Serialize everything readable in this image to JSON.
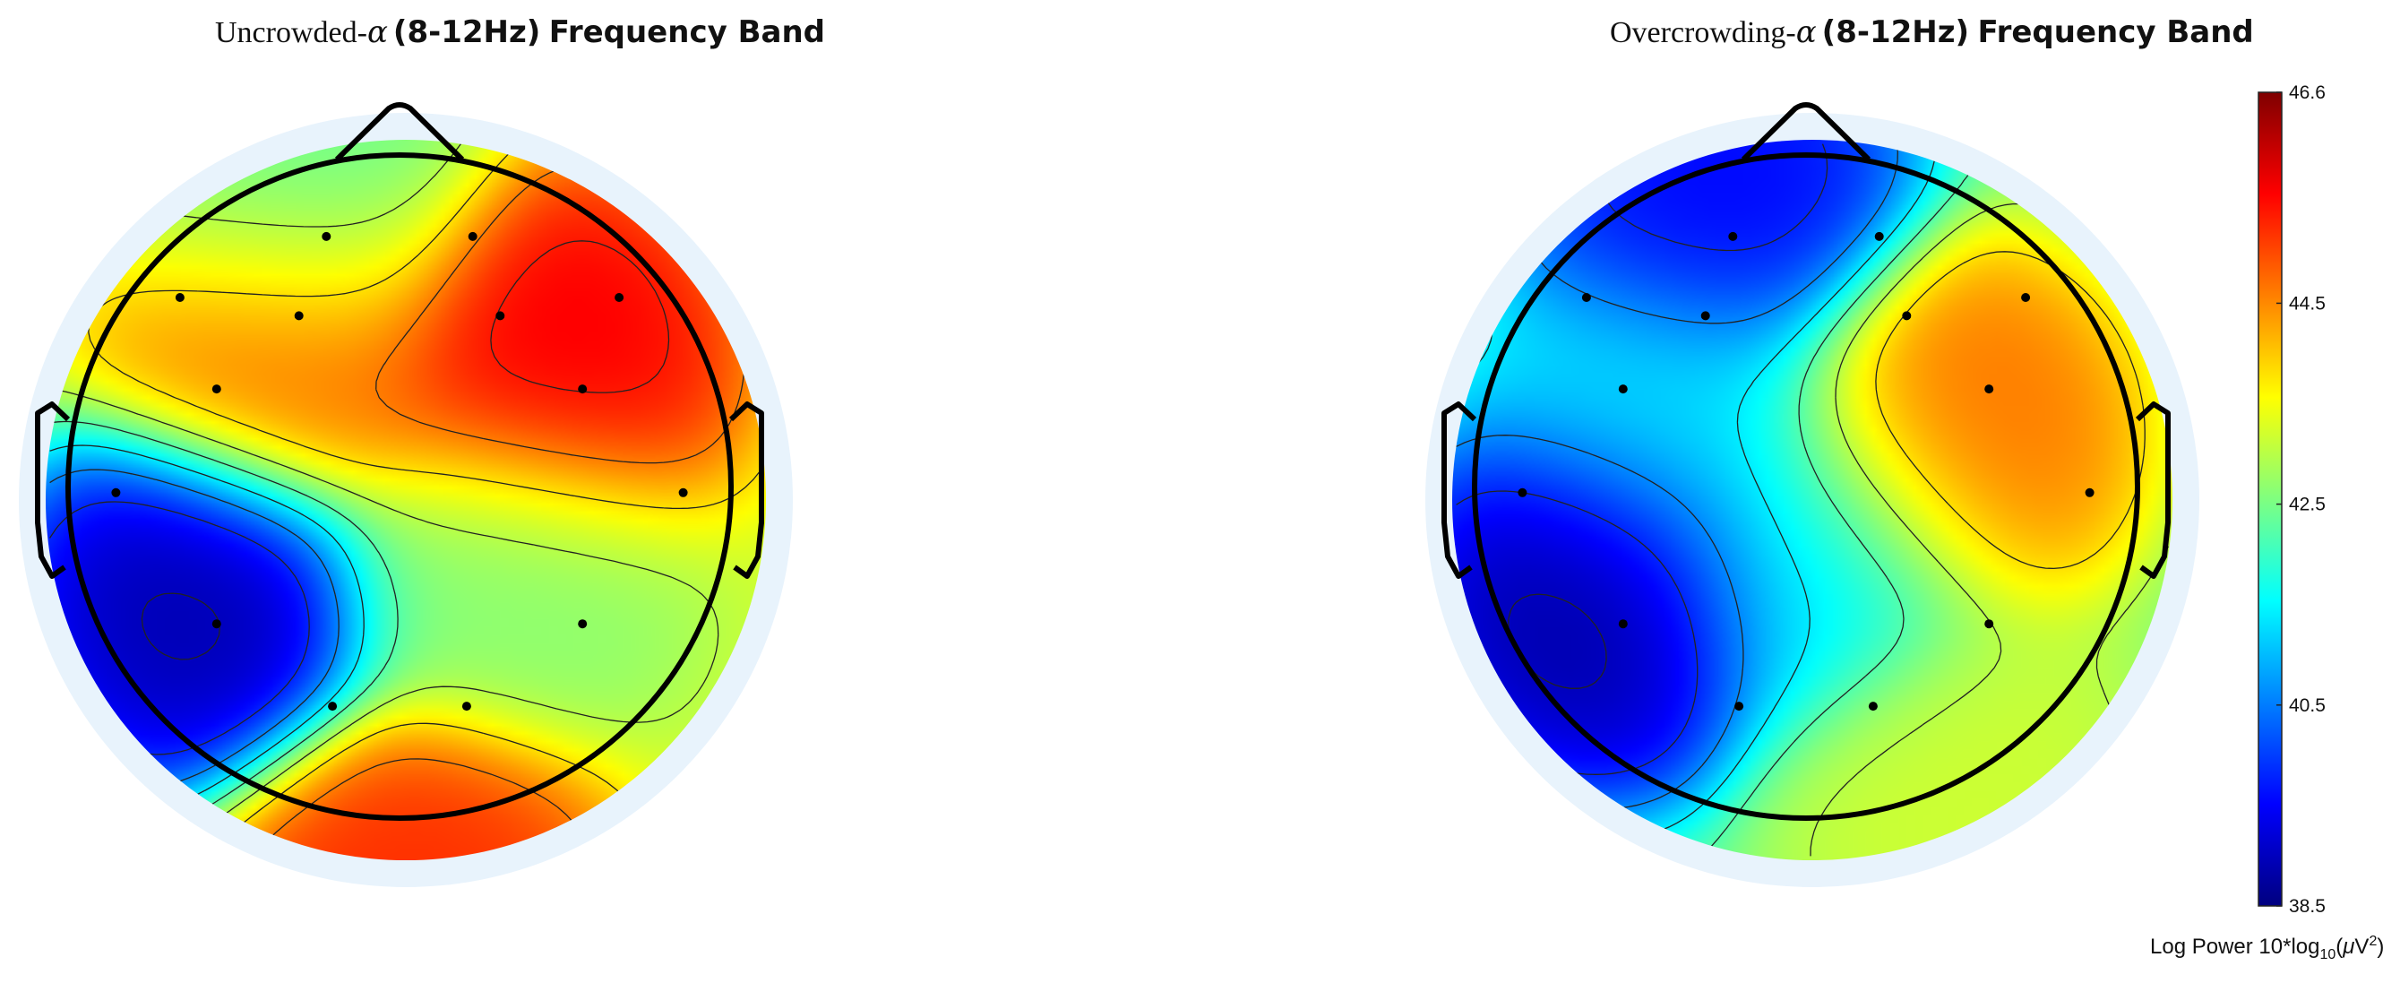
{
  "chart_data": [
    {
      "type": "heatmap",
      "subtype": "eeg-topographic-map",
      "title": {
        "condition": "Uncrowded-",
        "symbol": "α",
        "range": "(8-12Hz)",
        "band": "Frequency Band"
      },
      "value_range": [
        38.5,
        46.6
      ],
      "colormap": "jet",
      "contours": true,
      "electrodes_shown": true,
      "peaks": [
        {
          "x": 0.36,
          "y": 0.38,
          "value": 45.8
        },
        {
          "x": -0.32,
          "y": 0.4,
          "value": 44.9
        },
        {
          "x": -0.56,
          "y": -0.28,
          "value": 38.7
        },
        {
          "x": -0.28,
          "y": 0.82,
          "value": 42.3
        },
        {
          "x": 0.0,
          "y": -1.05,
          "value": 45.3
        },
        {
          "x": 0.25,
          "y": -0.2,
          "value": 42.6
        }
      ],
      "base_value": 43.2
    },
    {
      "type": "heatmap",
      "subtype": "eeg-topographic-map",
      "title": {
        "condition": "Overcrowding-",
        "symbol": "α",
        "range": "(8-12Hz)",
        "band": "Frequency Band"
      },
      "value_range": [
        38.5,
        46.6
      ],
      "colormap": "jet",
      "contours": true,
      "electrodes_shown": true,
      "peaks": [
        {
          "x": 0.36,
          "y": 0.18,
          "value": 44.8
        },
        {
          "x": -0.27,
          "y": 0.8,
          "value": 39.4
        },
        {
          "x": -0.58,
          "y": -0.25,
          "value": 38.6
        },
        {
          "x": -0.4,
          "y": 0.22,
          "value": 41.4
        },
        {
          "x": 0.0,
          "y": -0.15,
          "value": 41.3
        },
        {
          "x": 0.4,
          "y": -0.8,
          "value": 43.2
        }
      ],
      "base_value": 42.4
    }
  ],
  "colorbar": {
    "ticks": [
      "46.6",
      "44.5",
      "42.5",
      "40.5",
      "38.5"
    ],
    "tick_values": [
      46.6,
      44.5,
      42.5,
      40.5,
      38.5
    ],
    "label_prefix": "Log Power 10*log",
    "label_sub": "10",
    "label_open": "(",
    "label_mu": "μ",
    "label_unit": "V",
    "label_sup": "2",
    "label_close": ")"
  }
}
